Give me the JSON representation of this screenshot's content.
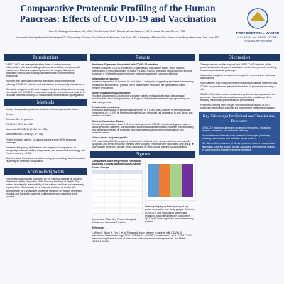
{
  "header": {
    "title": "Comparative Proteomic Profiling of the Human Pancreas: Effects of COVID-19 and Vaccination",
    "authors": "Juan C. Santiago-González, MD, MSc¹; Eric Miranda, PhD²; Diana Halfman-Navarro, MD³; Horacio Serrano-Rivera, PhD³",
    "affiliations": "¹Howard University Hospital, Washington DC; ²University of Puerto Rico School of Medicine, San Juan, PR; ³University of Puerto Rico School of health professionals, San Juan, PR",
    "logo_line1": "POST DOCTORAL MASTER",
    "logo_line2": "in CLINICAL and TRANSLATIONAL",
    "logo_line3": "RESEARCH PROGRAM"
  },
  "introduction": {
    "heading": "Introduction",
    "paragraphs": [
      "SARS-CoV-2 has emerged as a key driver of extrapulmonary inflammation, with accumulating evidence of metabolic and pancreatic involvement. Elevated amylase/lipase levels, imaging findings of pancreatic edema, and histological inflammation underscore this relationship.",
      "However, the molecular proteomic alterations within the pancreas following COVID-19 infection and vaccination remain poorly characterized.",
      "This study sought to profile and compare the pancreatic proteome among individuals with COVID-19, vaccinated subjects, and unaffected controls to elucidate potential pathways of inflammation and metabolic dysregulation."
    ]
  },
  "methods": {
    "heading": "Methods",
    "paragraphs": [
      "Design: Comparative proteomic analysis of human pancreatic tissue.",
      "Groups:",
      "Controls (N = 94 proteins)",
      "COVID-19 (C19, N = 172)",
      "Vaccinated COVID-19 (C19V, N = 126)",
      "Vaccinated non-COVID (V, N = 56)",
      "Protein inclusion criteria: ≥2 unique peptides and > 50% sequence coverage.",
      "Analyses: Frequency distributions and categorical comparisons of biological processes, cellular components, and molecular functions (χ² and Fisher's exact, p < 0.05).",
      "Bioinformatics: Functional annotation using gene ontology and hierarchical clustering for heatmap visualization."
    ]
  },
  "acknowledgments": {
    "heading": "Acknowledgments",
    "text": "This project was partially supported by the National Institute on Minority Health and Health Disparities of the National Institutes of Health. The content is solely the responsibility of the authors and does not necessarily represent the official views of the National Institutes of Health. We acknowledge the Department of Internal Medicine at Howard University Hospital and thank the academic collaborators who made this work possible."
  },
  "results": {
    "heading": "Results",
    "items": [
      {
        "title": "Proteomic Signatures Associated with COVID-19 Infection",
        "text": "Immune activation: COVID-19 infection, regardless of vaccination status, led to marked upregulation of immunoglobulins (P13881, P13880, P4805), indicating robust humoral immune response. ➤ Highlights ongoing immune system engagement even post-infection."
      },
      {
        "title": "Inflammatory response:",
        "text": "Increased expression of Annexin A1 and Alpha-1-antitrypsin, suggesting persistent inflammatory modulation. ➤ Annexin A1 plays a role in inflammation resolution via cytoskeleton-linked immune remodeling."
      },
      {
        "title": "Energy metabolism dysregulation:",
        "text": "Elevated Aldolase and Cytochrome c oxidase point to enhanced glycolytic demand and mitochondrial stress during infection. ➤ Supports link between metabolic reprogramming and viral pathogenesis."
      },
      {
        "title": "Cytoskeletal remodeling:",
        "text": "Significant upregulation of keratins and annexins (p < 0.001) with changes in general cellular components (p = 0.02). ➤ Reflects cytoskeletal and structural cell adaptation to viral stress and immune activation."
      },
      {
        "title": "Effect of Vaccination Status",
        "text": "Overlap (of medication): Both C19 (non-vaccinated) and C19V19 (vaccinated) groups shared similar proteomic patterns, but vaccinated subjects showed attenuated evidence in inflammatory and metabolic proteins. ➤ Suggests vaccination attenuates systemic inflammation and metabolic stress."
      },
      {
        "title": "Unique stress-response profile:",
        "text": "V19 (vaccinated COVID-negative) and controls exhibited fewer stress-related protein overall. Apoptotic- and stress-response markers were uniquely enriched in the vaccinated-only group. ➤ May indicate enhanced cellular stress adaptation or immunologic training post-vaccination."
      }
    ]
  },
  "figures": {
    "heading": "Figures",
    "captions": [
      "Comparative Table: Key Protein Functional Biological, Cellular, and Molecular Changes Across Groups",
      "Comparison Table: Key Protein Biological, Cellular and Molecular Function",
      "Heatmap displaying the frequency of key protein across the four study groups: Controls, COVID-19, and vaccination, which have enhanced associated immune functions in IgG1, IgA2 immunoglobulin, and inflammatory markers."
    ]
  },
  "references": {
    "heading": "References",
    "text": "1. Wang F, Wang H, Fan J, et al. Pancreatic injury patterns in patients with COVID-19 pneumonia. Gastroenterology. 2020. 2. Müller JA, Groß R, Conzelmann C, et al. SARS-CoV-2 infects and replicates in cells of the human endocrine and exocrine pancreas. Nat Metab. 2021;3:149-165."
  },
  "discussion": {
    "heading": "Discussion",
    "paragraphs": [
      "These proteomic profiles support that SARS-CoV-2 infection elicits profound alterations in pancreatic tissue architecture, primarily involving immune and metabolic pathways.",
      "Vaccination mitigates but does not completely reverse these molecular disturbances.",
      "Such patterns may explain persistent metabolic sequelae observed post-COVID and point toward potential biomarkers of pancreatic recovery or risk.",
      "COVID-19 infection causes measurable proteomic dysregulation in the pancreas. Vaccination demonstrates a protective modulatory effect, reducing inflammatory and metabolic perturbations.",
      "Proteomic profiling offers insight into mechanisms of post-COVID pancreatic dysfunction and may aid in identifying predictive biomarkers."
    ]
  },
  "key_takeaways": {
    "heading": "Key Takeaways for Clinical and Translational Relevance",
    "paragraphs": [
      "COVID-19 triggers multisystem proteomic remodeling, impacting immune, metabolic, and structural pathways.",
      "Vaccination modulates the host proteomic landscape, potentially reducing inflammation and oxidative stress burden.",
      "The differential enrichment of stress response markers in vaccinated individuals suggests distinct cellular adaptation mechanisms, relevant for understanding long-term immune resilience."
    ]
  }
}
